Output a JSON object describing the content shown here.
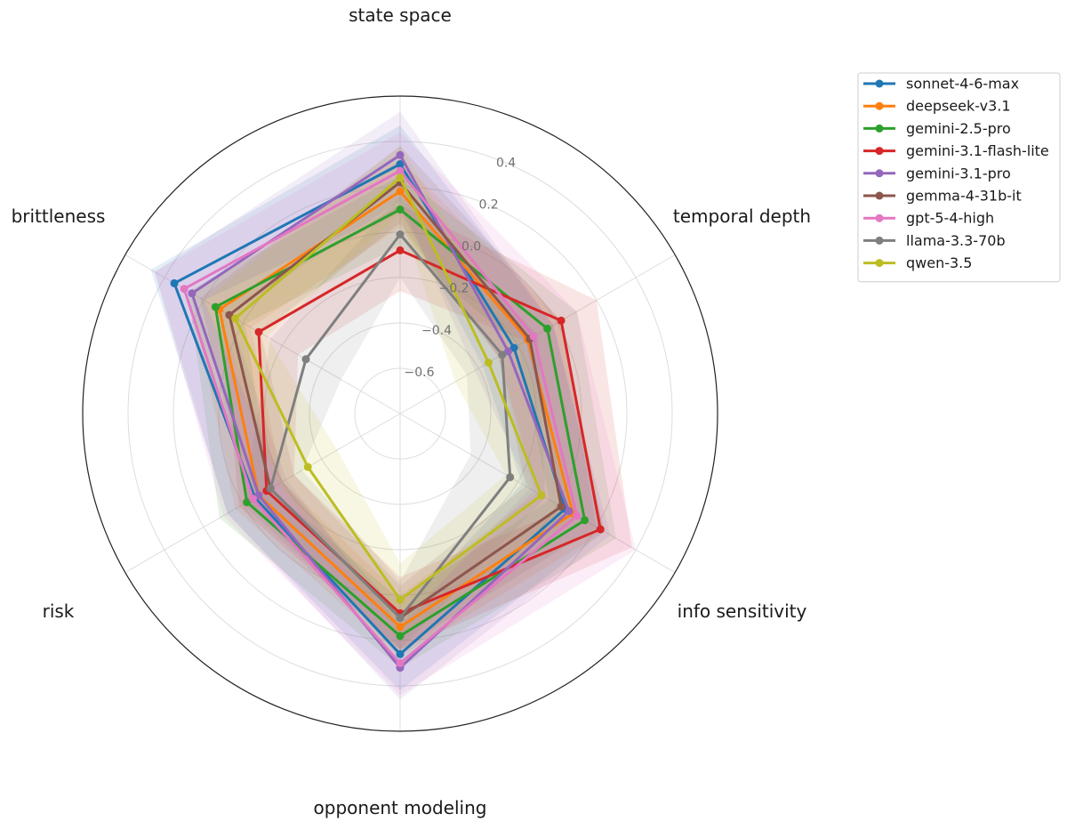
{
  "chart_data": {
    "type": "radar",
    "axes": [
      "state space",
      "temporal depth",
      "info sensitivity",
      "opponent modeling",
      "risk",
      "brittleness"
    ],
    "rlim": [
      -0.8,
      0.6
    ],
    "ticks": [
      0.4,
      0.2,
      0.0,
      -0.2,
      -0.4,
      -0.6
    ],
    "tick_labels": [
      "0.4",
      "0.2",
      "0.0",
      "−0.2",
      "−0.4",
      "−0.6"
    ],
    "grid": true,
    "legend_position": "top-right",
    "series": [
      {
        "name": "sonnet-4-6-max",
        "color": "#1f77b4",
        "values": [
          0.3,
          -0.22,
          0.04,
          0.26,
          -0.06,
          0.35
        ],
        "upper": [
          0.47,
          -0.02,
          0.24,
          0.42,
          0.08,
          0.47
        ],
        "lower": [
          0.1,
          -0.38,
          -0.18,
          0.08,
          -0.2,
          0.2
        ]
      },
      {
        "name": "deepseek-v3.1",
        "color": "#ff7f0e",
        "values": [
          0.18,
          -0.15,
          0.08,
          0.14,
          -0.08,
          0.12
        ],
        "upper": [
          0.32,
          0.02,
          0.24,
          0.27,
          0.04,
          0.27
        ],
        "lower": [
          0.02,
          -0.3,
          -0.1,
          0.0,
          -0.2,
          -0.04
        ]
      },
      {
        "name": "gemini-2.5-pro",
        "color": "#2ca02c",
        "values": [
          0.1,
          -0.05,
          0.14,
          0.18,
          -0.02,
          0.14
        ],
        "upper": [
          0.25,
          0.1,
          0.3,
          0.32,
          0.12,
          0.28
        ],
        "lower": [
          -0.06,
          -0.2,
          -0.04,
          0.02,
          -0.14,
          -0.01
        ]
      },
      {
        "name": "gemini-3.1-flash-lite",
        "color": "#d62728",
        "values": [
          -0.08,
          0.02,
          0.22,
          0.08,
          -0.12,
          -0.08
        ],
        "upper": [
          0.12,
          0.2,
          0.38,
          0.24,
          0.02,
          0.12
        ],
        "lower": [
          -0.26,
          -0.16,
          0.04,
          -0.08,
          -0.26,
          -0.28
        ]
      },
      {
        "name": "gemini-3.1-pro",
        "color": "#9467bd",
        "values": [
          0.34,
          -0.25,
          0.06,
          0.32,
          -0.08,
          0.26
        ],
        "upper": [
          0.53,
          -0.02,
          0.27,
          0.46,
          0.08,
          0.45
        ],
        "lower": [
          0.14,
          -0.42,
          -0.14,
          0.14,
          -0.22,
          0.07
        ]
      },
      {
        "name": "gemma-4-31b-it",
        "color": "#8c564b",
        "values": [
          0.22,
          -0.14,
          0.02,
          0.1,
          -0.14,
          0.07
        ],
        "upper": [
          0.38,
          0.02,
          0.2,
          0.24,
          -0.02,
          0.22
        ],
        "lower": [
          0.04,
          -0.3,
          -0.16,
          -0.04,
          -0.26,
          -0.09
        ]
      },
      {
        "name": "gpt-5-4-high",
        "color": "#e377c2",
        "values": [
          0.27,
          -0.12,
          0.1,
          0.3,
          -0.05,
          0.3
        ],
        "upper": [
          0.44,
          0.1,
          0.4,
          0.44,
          0.1,
          0.45
        ],
        "lower": [
          0.08,
          -0.3,
          -0.12,
          0.12,
          -0.2,
          0.14
        ]
      },
      {
        "name": "llama-3.3-70b",
        "color": "#7f7f7f",
        "values": [
          -0.01,
          -0.28,
          -0.24,
          0.1,
          -0.14,
          -0.32
        ],
        "upper": [
          0.16,
          -0.1,
          -0.06,
          0.24,
          0.0,
          -0.14
        ],
        "lower": [
          -0.2,
          -0.46,
          -0.44,
          -0.06,
          -0.3,
          -0.5
        ]
      },
      {
        "name": "qwen-3.5",
        "color": "#bcbd22",
        "values": [
          0.24,
          -0.35,
          -0.08,
          0.02,
          -0.33,
          0.04
        ],
        "upper": [
          0.38,
          -0.18,
          0.1,
          0.18,
          -0.18,
          0.2
        ],
        "lower": [
          0.08,
          -0.52,
          -0.26,
          -0.14,
          -0.48,
          -0.12
        ]
      }
    ]
  }
}
